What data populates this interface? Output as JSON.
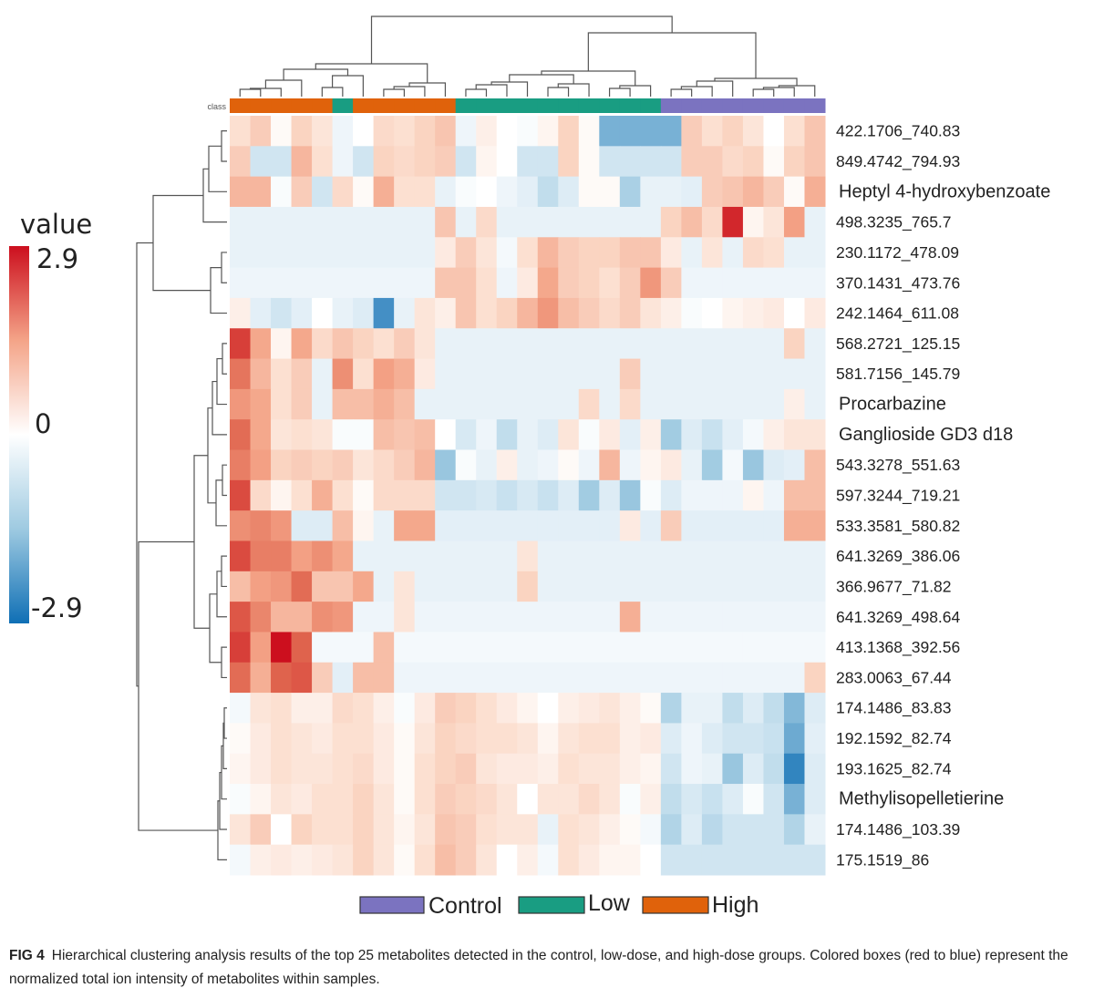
{
  "chart_data": {
    "type": "heatmap",
    "class_bar_label": "class",
    "colorbar": {
      "title": "value",
      "max_label": "2.9",
      "mid_label": "0",
      "min_label": "-2.9",
      "max": 2.9,
      "min": -2.9,
      "high_color": "#cc0f1e",
      "mid_color": "#ffffff",
      "low_color": "#0f6fb5"
    },
    "sample_classes": [
      "High",
      "High",
      "High",
      "High",
      "High",
      "Low",
      "High",
      "High",
      "High",
      "High",
      "High",
      "Low",
      "Low",
      "Low",
      "Low",
      "Low",
      "Low",
      "Low",
      "Low",
      "Low",
      "Low",
      "Control",
      "Control",
      "Control",
      "Control",
      "Control",
      "Control",
      "Control",
      "Control"
    ],
    "class_colors": {
      "Control": "#7b73c0",
      "Low": "#199d82",
      "High": "#e0620b"
    },
    "legend": [
      "Control",
      "Low",
      "High"
    ],
    "rows": [
      "422.1706_740.83",
      "849.4742_794.93",
      "Heptyl 4-hydroxybenzoate",
      "498.3235_765.7",
      "230.1172_478.09",
      "370.1431_473.76",
      "242.1464_611.08",
      "568.2721_125.15",
      "581.7156_145.79",
      "Procarbazine",
      "Ganglioside GD3 d18",
      "543.3278_551.63",
      "597.3244_719.21",
      "533.3581_580.82",
      "641.3269_386.06",
      "366.9677_71.82",
      "641.3269_498.64",
      "413.1368_392.56",
      "283.0063_67.44",
      "174.1486_83.83",
      "192.1592_82.74",
      "193.1625_82.74",
      "Methylisopelletierine",
      "174.1486_103.39",
      "175.1519_86"
    ],
    "values": [
      [
        0.6,
        0.9,
        0.1,
        0.8,
        0.5,
        -0.3,
        0.0,
        0.7,
        0.6,
        0.8,
        1.0,
        -0.3,
        0.3,
        0.0,
        -0.1,
        0.2,
        0.8,
        0.1,
        -1.8,
        -1.8,
        -1.8,
        -1.8,
        0.9,
        0.6,
        0.8,
        0.5,
        0.0,
        0.6,
        1.0
      ],
      [
        0.9,
        -0.8,
        -0.8,
        1.2,
        0.6,
        -0.3,
        -0.8,
        0.8,
        0.7,
        0.8,
        0.9,
        -0.8,
        0.2,
        0.0,
        -0.8,
        -0.8,
        0.8,
        0.1,
        -0.8,
        -0.8,
        -0.8,
        -0.8,
        0.9,
        0.9,
        0.7,
        0.8,
        0.1,
        0.8,
        1.0
      ],
      [
        1.2,
        1.2,
        -0.1,
        0.9,
        -0.8,
        0.7,
        0.1,
        1.3,
        0.6,
        0.6,
        -0.4,
        -0.1,
        0.0,
        -0.3,
        -0.5,
        -1.0,
        -0.6,
        0.1,
        0.1,
        -1.3,
        -0.4,
        -0.4,
        -0.5,
        0.9,
        1.0,
        1.2,
        0.9,
        0.1,
        1.3
      ],
      [
        -0.4,
        -0.4,
        -0.4,
        -0.4,
        -0.4,
        -0.4,
        -0.4,
        -0.4,
        -0.4,
        -0.4,
        1.0,
        -0.4,
        0.7,
        -0.4,
        -0.4,
        -0.4,
        -0.4,
        -0.4,
        -0.4,
        -0.4,
        -0.4,
        0.8,
        1.1,
        0.7,
        2.7,
        0.2,
        0.5,
        1.5,
        -0.4
      ],
      [
        -0.4,
        -0.4,
        -0.4,
        -0.4,
        -0.4,
        -0.4,
        -0.4,
        -0.4,
        -0.4,
        -0.4,
        0.4,
        0.9,
        0.5,
        -0.2,
        0.6,
        1.2,
        0.9,
        0.8,
        0.8,
        1.0,
        1.0,
        0.4,
        -0.4,
        0.5,
        -0.4,
        0.7,
        0.6,
        -0.4,
        -0.4
      ],
      [
        -0.3,
        -0.3,
        -0.3,
        -0.3,
        -0.3,
        -0.3,
        -0.3,
        -0.3,
        -0.3,
        -0.3,
        1.0,
        1.0,
        0.6,
        -0.3,
        0.4,
        1.4,
        0.9,
        0.8,
        0.6,
        0.9,
        1.6,
        0.9,
        -0.3,
        -0.3,
        -0.3,
        -0.3,
        -0.3,
        -0.3,
        -0.3
      ],
      [
        0.3,
        -0.5,
        -0.8,
        -0.5,
        0.0,
        -0.4,
        -0.6,
        -2.3,
        -0.4,
        0.5,
        0.3,
        1.0,
        0.6,
        0.8,
        1.2,
        1.6,
        1.1,
        0.9,
        0.7,
        0.9,
        0.5,
        0.3,
        -0.1,
        0.0,
        0.2,
        0.3,
        0.4,
        0.0,
        0.4
      ],
      [
        2.5,
        1.4,
        0.2,
        1.4,
        0.7,
        1.0,
        0.8,
        0.6,
        0.9,
        0.5,
        -0.4,
        -0.4,
        -0.4,
        -0.4,
        -0.4,
        -0.4,
        -0.4,
        -0.4,
        -0.4,
        -0.4,
        -0.4,
        -0.4,
        -0.4,
        -0.4,
        -0.4,
        -0.4,
        -0.4,
        0.8,
        -0.4
      ],
      [
        2.0,
        1.2,
        0.6,
        0.9,
        -0.4,
        1.7,
        0.6,
        1.5,
        1.3,
        0.4,
        -0.4,
        -0.4,
        -0.4,
        -0.4,
        -0.4,
        -0.4,
        -0.4,
        -0.4,
        -0.4,
        0.9,
        -0.4,
        -0.4,
        -0.4,
        -0.4,
        -0.4,
        -0.4,
        -0.4,
        -0.4,
        -0.4
      ],
      [
        1.6,
        1.4,
        0.6,
        0.9,
        -0.4,
        1.1,
        1.1,
        1.3,
        1.1,
        -0.4,
        -0.4,
        -0.4,
        -0.4,
        -0.4,
        -0.4,
        -0.4,
        -0.4,
        0.7,
        -0.4,
        0.7,
        -0.4,
        -0.4,
        -0.4,
        -0.4,
        -0.4,
        -0.4,
        -0.4,
        0.3,
        -0.4
      ],
      [
        2.1,
        1.4,
        0.5,
        0.6,
        0.5,
        -0.1,
        -0.1,
        1.1,
        1.0,
        1.1,
        0.0,
        -0.7,
        -0.3,
        -1.0,
        -0.4,
        -0.6,
        0.5,
        -0.1,
        0.4,
        -0.5,
        0.3,
        -1.4,
        -0.6,
        -0.9,
        -0.5,
        -0.2,
        0.3,
        0.5,
        0.5
      ],
      [
        1.9,
        1.5,
        0.8,
        0.9,
        0.8,
        0.9,
        0.5,
        0.7,
        0.9,
        1.2,
        -1.5,
        -0.1,
        -0.4,
        0.3,
        -0.4,
        -0.3,
        0.1,
        -0.3,
        1.2,
        -0.3,
        0.2,
        0.4,
        -0.4,
        -1.4,
        -0.2,
        -1.5,
        -0.6,
        -0.5,
        1.1
      ],
      [
        2.4,
        0.7,
        0.2,
        0.6,
        1.3,
        0.6,
        0.1,
        0.7,
        0.7,
        0.7,
        -0.8,
        -0.8,
        -0.7,
        -0.9,
        -0.7,
        -0.9,
        -0.6,
        -1.4,
        -0.6,
        -1.5,
        -0.1,
        -0.6,
        -0.3,
        -0.3,
        -0.3,
        0.2,
        -0.3,
        1.1,
        1.1
      ],
      [
        1.7,
        1.8,
        1.6,
        -0.6,
        -0.6,
        1.1,
        0.2,
        -0.4,
        1.4,
        1.4,
        -0.5,
        -0.5,
        -0.5,
        -0.5,
        -0.5,
        -0.5,
        -0.5,
        -0.5,
        -0.5,
        0.4,
        -0.5,
        0.9,
        -0.5,
        -0.5,
        -0.5,
        -0.5,
        -0.5,
        1.3,
        1.3
      ],
      [
        2.4,
        1.9,
        1.9,
        1.5,
        1.7,
        1.4,
        -0.4,
        -0.4,
        -0.4,
        -0.4,
        -0.4,
        -0.4,
        -0.4,
        -0.4,
        0.5,
        -0.4,
        -0.4,
        -0.4,
        -0.4,
        -0.4,
        -0.4,
        -0.4,
        -0.4,
        -0.4,
        -0.4,
        -0.4,
        -0.4,
        -0.4,
        -0.4
      ],
      [
        1.1,
        1.5,
        1.6,
        2.1,
        1.0,
        1.0,
        1.4,
        -0.4,
        0.5,
        -0.4,
        -0.4,
        -0.4,
        -0.4,
        -0.4,
        0.8,
        -0.4,
        -0.4,
        -0.4,
        -0.4,
        -0.4,
        -0.4,
        -0.4,
        -0.4,
        -0.4,
        -0.4,
        -0.4,
        -0.4,
        -0.4,
        -0.4
      ],
      [
        2.3,
        1.8,
        1.2,
        1.2,
        1.7,
        1.6,
        -0.3,
        -0.3,
        0.5,
        -0.3,
        -0.3,
        -0.3,
        -0.3,
        -0.3,
        -0.3,
        -0.3,
        -0.3,
        -0.3,
        -0.3,
        1.3,
        -0.3,
        -0.3,
        -0.3,
        -0.3,
        -0.3,
        -0.3,
        -0.3,
        -0.3,
        -0.3
      ],
      [
        2.5,
        1.5,
        2.9,
        2.2,
        -0.2,
        -0.2,
        -0.2,
        1.1,
        -0.2,
        -0.2,
        -0.2,
        -0.2,
        -0.2,
        -0.2,
        -0.2,
        -0.2,
        -0.2,
        -0.2,
        -0.2,
        -0.2,
        -0.2,
        -0.2,
        -0.2,
        -0.2,
        -0.2,
        -0.2,
        -0.2,
        -0.2,
        -0.2
      ],
      [
        2.1,
        1.3,
        2.2,
        2.3,
        0.9,
        -0.5,
        1.1,
        1.1,
        -0.3,
        -0.3,
        -0.3,
        -0.3,
        -0.3,
        -0.3,
        -0.3,
        -0.3,
        -0.3,
        -0.3,
        -0.3,
        -0.3,
        -0.3,
        -0.3,
        -0.3,
        -0.3,
        -0.3,
        -0.3,
        -0.3,
        -0.3,
        0.8
      ],
      [
        -0.2,
        0.5,
        0.6,
        0.3,
        0.3,
        0.7,
        0.6,
        0.3,
        -0.1,
        0.4,
        0.9,
        0.8,
        0.6,
        0.4,
        0.2,
        0.0,
        0.3,
        0.4,
        0.5,
        0.3,
        0.1,
        -1.2,
        -0.4,
        -0.4,
        -1.0,
        -0.6,
        -1.0,
        -1.7,
        -0.6
      ],
      [
        0.1,
        0.4,
        0.6,
        0.5,
        0.4,
        0.6,
        0.6,
        0.4,
        0.1,
        0.5,
        0.8,
        0.7,
        0.6,
        0.6,
        0.5,
        0.2,
        0.5,
        0.6,
        0.6,
        0.3,
        0.4,
        -0.6,
        -0.3,
        -0.6,
        -0.8,
        -0.8,
        -0.9,
        -1.9,
        -0.5
      ],
      [
        0.2,
        0.4,
        0.6,
        0.5,
        0.5,
        0.6,
        0.7,
        0.4,
        0.1,
        0.6,
        0.8,
        0.9,
        0.5,
        0.4,
        0.4,
        0.3,
        0.6,
        0.5,
        0.5,
        0.3,
        0.2,
        -0.8,
        -0.3,
        -0.4,
        -1.5,
        -0.6,
        -1.0,
        -2.5,
        -0.6
      ],
      [
        -0.1,
        0.2,
        0.5,
        0.4,
        0.6,
        0.6,
        0.8,
        0.5,
        0.1,
        0.6,
        0.9,
        0.8,
        0.7,
        0.5,
        0.0,
        0.5,
        0.5,
        0.7,
        0.5,
        -0.1,
        0.3,
        -1.0,
        -0.7,
        -0.9,
        -0.6,
        -0.1,
        -0.8,
        -1.8,
        -0.6
      ],
      [
        0.5,
        0.9,
        0.0,
        0.8,
        0.6,
        0.6,
        0.8,
        0.5,
        0.2,
        0.5,
        1.0,
        0.9,
        0.6,
        0.5,
        0.5,
        -0.4,
        0.6,
        0.5,
        0.3,
        0.1,
        -0.2,
        -1.2,
        -0.6,
        -1.1,
        -0.8,
        -0.8,
        -0.8,
        -1.2,
        -0.4
      ],
      [
        -0.2,
        0.3,
        0.4,
        0.3,
        0.4,
        0.5,
        0.8,
        0.5,
        0.1,
        0.6,
        1.1,
        0.9,
        0.5,
        0.0,
        0.3,
        -0.2,
        0.6,
        0.4,
        0.2,
        0.2,
        0.0,
        -0.8,
        -0.8,
        -0.8,
        -0.8,
        -0.8,
        -0.8,
        -0.8,
        -0.8
      ]
    ]
  },
  "caption": {
    "label": "FIG 4",
    "text": "Hierarchical clustering analysis results of the top 25 metabolites detected in the control, low-dose, and high-dose groups. Colored boxes (red to blue) represent the normalized total ion intensity of metabolites within samples."
  }
}
